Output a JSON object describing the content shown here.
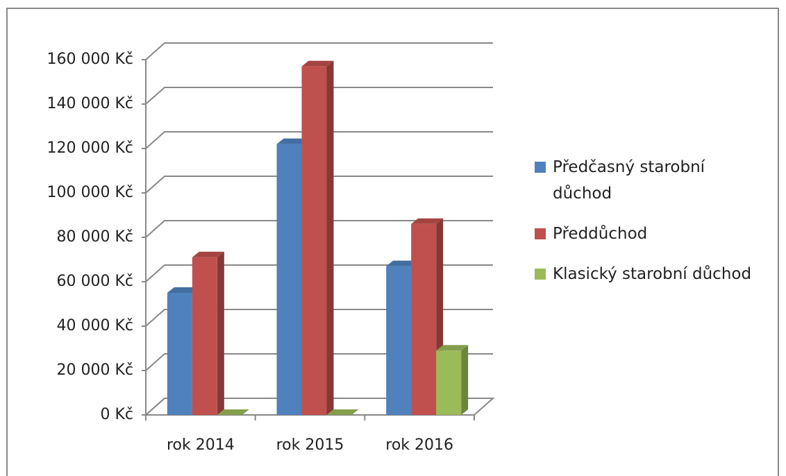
{
  "chart_data": {
    "type": "bar3d",
    "categories": [
      "rok 2014",
      "rok 2015",
      "rok 2016"
    ],
    "series": [
      {
        "name": "Předčasný starobní důchod",
        "color": "#4f81bd",
        "values": [
          55000,
          122000,
          67000
        ]
      },
      {
        "name": "Předdůchod",
        "color": "#c0504d",
        "values": [
          71000,
          157000,
          86000
        ]
      },
      {
        "name": "Klasický starobní důchod",
        "color": "#9bbb59",
        "values": [
          0,
          0,
          29000
        ]
      }
    ],
    "ylim": [
      0,
      160000
    ],
    "yticks": [
      {
        "value": 0,
        "label": "0 Kč"
      },
      {
        "value": 20000,
        "label": "20 000 Kč"
      },
      {
        "value": 40000,
        "label": "40 000 Kč"
      },
      {
        "value": 60000,
        "label": "60 000 Kč"
      },
      {
        "value": 80000,
        "label": "80 000 Kč"
      },
      {
        "value": 100000,
        "label": "100 000 Kč"
      },
      {
        "value": 120000,
        "label": "120 000 Kč"
      },
      {
        "value": 140000,
        "label": "140 000 Kč"
      },
      {
        "value": 160000,
        "label": "160 000 Kč"
      }
    ],
    "grid": true,
    "legend": "right"
  }
}
